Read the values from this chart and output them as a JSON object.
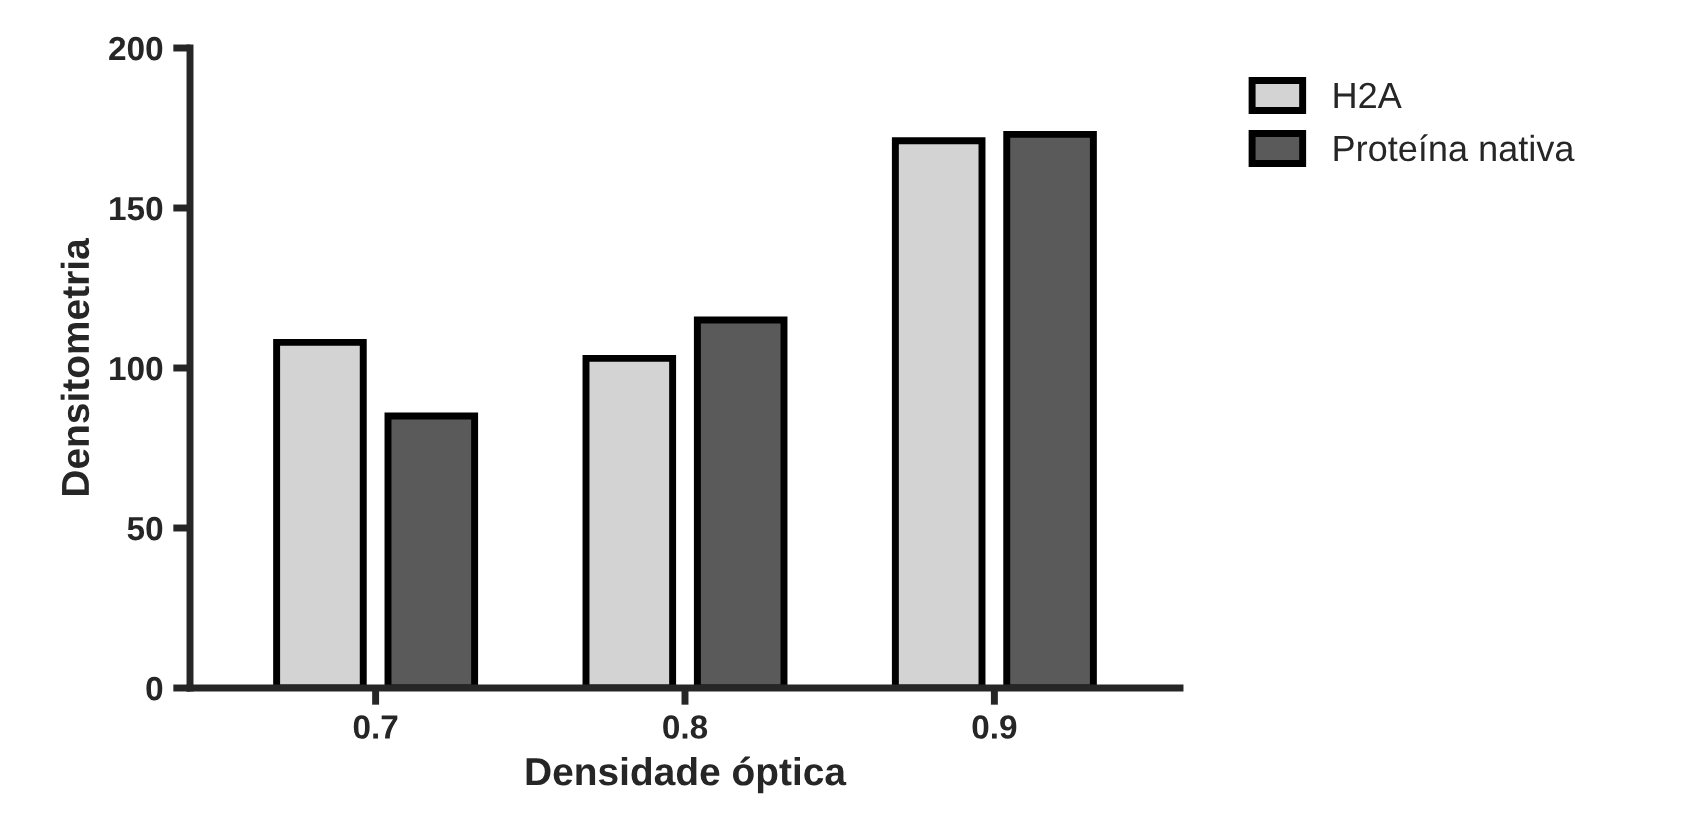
{
  "chart_data": {
    "type": "bar",
    "xlabel": "Densidade óptica",
    "ylabel": "Densitometria",
    "categories": [
      "0.7",
      "0.8",
      "0.9"
    ],
    "series": [
      {
        "name": "H2A",
        "color": "#d3d3d3",
        "values": [
          108,
          103,
          171
        ]
      },
      {
        "name": "Proteína nativa",
        "color": "#5a5a5a",
        "values": [
          85,
          115,
          173
        ]
      }
    ],
    "ylim": [
      0,
      200
    ],
    "yticks": [
      0,
      50,
      100,
      150,
      200
    ],
    "grid": false,
    "legend": "top right"
  }
}
